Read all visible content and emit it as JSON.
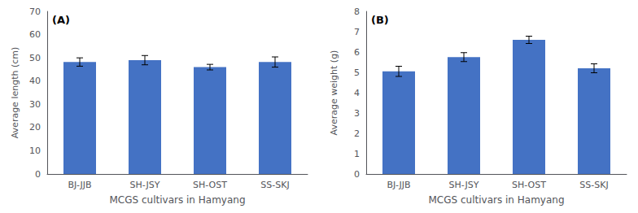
{
  "chart_data": [
    {
      "type": "bar",
      "annotation": "(A)",
      "categories": [
        "BJ-JJB",
        "SH-JSY",
        "SH-OST",
        "SS-SKJ"
      ],
      "values": [
        48.2,
        49.0,
        46.0,
        48.2
      ],
      "errors": [
        1.8,
        2.0,
        1.2,
        2.2
      ],
      "xlabel": "MCGS cultivars in Hamyang",
      "ylabel": "Average length (cm)",
      "ylim": [
        0,
        70
      ],
      "yticks": [
        0,
        10,
        20,
        30,
        40,
        50,
        60,
        70
      ],
      "color": "#4472C4",
      "grid": false
    },
    {
      "type": "bar",
      "annotation": "(B)",
      "categories": [
        "BJ-JJB",
        "SH-JSY",
        "SH-OST",
        "SS-SKJ"
      ],
      "values": [
        5.05,
        5.75,
        6.6,
        5.2
      ],
      "errors": [
        0.25,
        0.22,
        0.18,
        0.22
      ],
      "xlabel": "MCGS cultivars in Hamyang",
      "ylabel": "Average weight (g)",
      "ylim": [
        0,
        8
      ],
      "yticks": [
        0,
        1,
        2,
        3,
        4,
        5,
        6,
        7,
        8
      ],
      "color": "#4472C4",
      "grid": false
    }
  ]
}
